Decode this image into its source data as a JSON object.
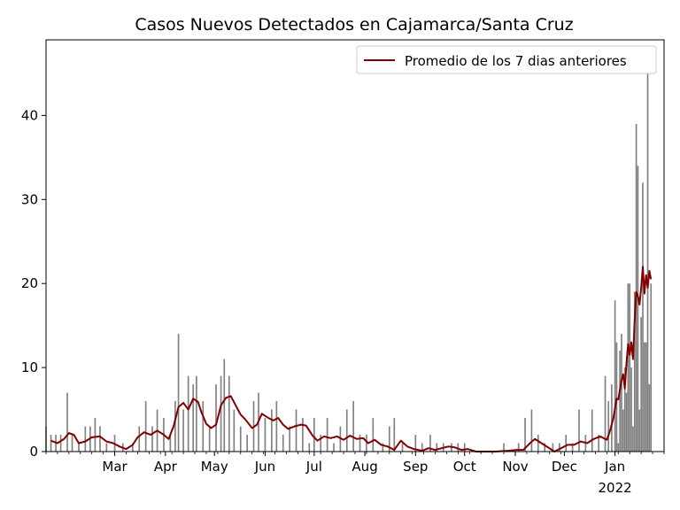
{
  "chart_data": {
    "type": "bar",
    "title": "Casos Nuevos Detectados en Cajamarca/Santa Cruz",
    "xlabel": "",
    "ylabel": "",
    "ylim": [
      0,
      49
    ],
    "xlim": [
      "2021-01-18",
      "2022-01-31"
    ],
    "y_ticks": [
      0,
      10,
      20,
      30,
      40
    ],
    "x_ticks": [
      {
        "date": "2021-03-01",
        "label": "Mar"
      },
      {
        "date": "2021-04-01",
        "label": "Apr"
      },
      {
        "date": "2021-05-01",
        "label": "May"
      },
      {
        "date": "2021-06-01",
        "label": "Jun"
      },
      {
        "date": "2021-07-01",
        "label": "Jul"
      },
      {
        "date": "2021-08-01",
        "label": "Aug"
      },
      {
        "date": "2021-09-01",
        "label": "Sep"
      },
      {
        "date": "2021-10-01",
        "label": "Oct"
      },
      {
        "date": "2021-11-01",
        "label": "Nov"
      },
      {
        "date": "2021-12-01",
        "label": "Dec"
      },
      {
        "date": "2022-01-01",
        "label": "Jan",
        "sublabel": "2022"
      }
    ],
    "legend_position": "upper right",
    "grid": false,
    "series": [
      {
        "kind": "bar",
        "color": "#808080",
        "points": [
          [
            "2021-01-18",
            3
          ],
          [
            "2021-01-21",
            2
          ],
          [
            "2021-01-24",
            2
          ],
          [
            "2021-01-27",
            2
          ],
          [
            "2021-01-31",
            7
          ],
          [
            "2021-02-03",
            2
          ],
          [
            "2021-02-07",
            1
          ],
          [
            "2021-02-11",
            3
          ],
          [
            "2021-02-14",
            3
          ],
          [
            "2021-02-17",
            4
          ],
          [
            "2021-02-20",
            3
          ],
          [
            "2021-02-24",
            1
          ],
          [
            "2021-03-01",
            2
          ],
          [
            "2021-03-06",
            1
          ],
          [
            "2021-03-12",
            1
          ],
          [
            "2021-03-16",
            3
          ],
          [
            "2021-03-20",
            6
          ],
          [
            "2021-03-24",
            3
          ],
          [
            "2021-03-27",
            5
          ],
          [
            "2021-03-31",
            4
          ],
          [
            "2021-04-04",
            2
          ],
          [
            "2021-04-07",
            6
          ],
          [
            "2021-04-09",
            14
          ],
          [
            "2021-04-12",
            5
          ],
          [
            "2021-04-15",
            9
          ],
          [
            "2021-04-18",
            8
          ],
          [
            "2021-04-20",
            9
          ],
          [
            "2021-04-24",
            6
          ],
          [
            "2021-04-28",
            3
          ],
          [
            "2021-05-02",
            8
          ],
          [
            "2021-05-05",
            9
          ],
          [
            "2021-05-07",
            11
          ],
          [
            "2021-05-10",
            9
          ],
          [
            "2021-05-13",
            5
          ],
          [
            "2021-05-17",
            3
          ],
          [
            "2021-05-21",
            2
          ],
          [
            "2021-05-25",
            6
          ],
          [
            "2021-05-28",
            7
          ],
          [
            "2021-06-01",
            4
          ],
          [
            "2021-06-05",
            5
          ],
          [
            "2021-06-08",
            6
          ],
          [
            "2021-06-12",
            2
          ],
          [
            "2021-06-16",
            3
          ],
          [
            "2021-06-20",
            5
          ],
          [
            "2021-06-24",
            4
          ],
          [
            "2021-06-28",
            1
          ],
          [
            "2021-07-01",
            4
          ],
          [
            "2021-07-05",
            2
          ],
          [
            "2021-07-09",
            4
          ],
          [
            "2021-07-13",
            1
          ],
          [
            "2021-07-17",
            3
          ],
          [
            "2021-07-21",
            5
          ],
          [
            "2021-07-25",
            6
          ],
          [
            "2021-07-29",
            2
          ],
          [
            "2021-08-02",
            2
          ],
          [
            "2021-08-06",
            4
          ],
          [
            "2021-08-12",
            1
          ],
          [
            "2021-08-16",
            3
          ],
          [
            "2021-08-19",
            4
          ],
          [
            "2021-08-24",
            1
          ],
          [
            "2021-09-01",
            2
          ],
          [
            "2021-09-05",
            1
          ],
          [
            "2021-09-10",
            2
          ],
          [
            "2021-09-14",
            1
          ],
          [
            "2021-09-18",
            1
          ],
          [
            "2021-09-23",
            1
          ],
          [
            "2021-09-27",
            1
          ],
          [
            "2021-10-01",
            1
          ],
          [
            "2021-10-06",
            0
          ],
          [
            "2021-10-12",
            0
          ],
          [
            "2021-10-20",
            0
          ],
          [
            "2021-10-25",
            1
          ],
          [
            "2021-10-30",
            0
          ],
          [
            "2021-11-03",
            1
          ],
          [
            "2021-11-07",
            4
          ],
          [
            "2021-11-11",
            5
          ],
          [
            "2021-11-15",
            2
          ],
          [
            "2021-11-19",
            1
          ],
          [
            "2021-11-24",
            1
          ],
          [
            "2021-11-28",
            1
          ],
          [
            "2021-12-02",
            2
          ],
          [
            "2021-12-06",
            1
          ],
          [
            "2021-12-10",
            5
          ],
          [
            "2021-12-14",
            2
          ],
          [
            "2021-12-18",
            5
          ],
          [
            "2021-12-22",
            2
          ],
          [
            "2021-12-26",
            9
          ],
          [
            "2021-12-28",
            6
          ],
          [
            "2021-12-30",
            8
          ],
          [
            "2022-01-01",
            18
          ],
          [
            "2022-01-02",
            13
          ],
          [
            "2022-01-03",
            1
          ],
          [
            "2022-01-04",
            12
          ],
          [
            "2022-01-05",
            14
          ],
          [
            "2022-01-06",
            5
          ],
          [
            "2022-01-07",
            10
          ],
          [
            "2022-01-08",
            7
          ],
          [
            "2022-01-09",
            20
          ],
          [
            "2022-01-10",
            20
          ],
          [
            "2022-01-11",
            10
          ],
          [
            "2022-01-12",
            3
          ],
          [
            "2022-01-13",
            19
          ],
          [
            "2022-01-14",
            39
          ],
          [
            "2022-01-15",
            34
          ],
          [
            "2022-01-16",
            5
          ],
          [
            "2022-01-17",
            16
          ],
          [
            "2022-01-18",
            32
          ],
          [
            "2022-01-19",
            13
          ],
          [
            "2022-01-20",
            13
          ],
          [
            "2022-01-21",
            47
          ],
          [
            "2022-01-22",
            8
          ],
          [
            "2022-01-23",
            20
          ]
        ]
      },
      {
        "kind": "line",
        "name": "Promedio de los 7 dias anteriores",
        "color": "#800000",
        "points": [
          [
            "2021-01-21",
            1.3
          ],
          [
            "2021-01-25",
            1.0
          ],
          [
            "2021-01-29",
            1.5
          ],
          [
            "2021-02-01",
            2.2
          ],
          [
            "2021-02-04",
            2.0
          ],
          [
            "2021-02-07",
            1.0
          ],
          [
            "2021-02-11",
            1.2
          ],
          [
            "2021-02-15",
            1.7
          ],
          [
            "2021-02-20",
            1.8
          ],
          [
            "2021-02-24",
            1.2
          ],
          [
            "2021-02-28",
            1.0
          ],
          [
            "2021-03-04",
            0.6
          ],
          [
            "2021-03-08",
            0.3
          ],
          [
            "2021-03-12",
            0.8
          ],
          [
            "2021-03-15",
            1.7
          ],
          [
            "2021-03-19",
            2.3
          ],
          [
            "2021-03-23",
            2.0
          ],
          [
            "2021-03-27",
            2.5
          ],
          [
            "2021-03-31",
            2.0
          ],
          [
            "2021-04-03",
            1.5
          ],
          [
            "2021-04-06",
            3.0
          ],
          [
            "2021-04-09",
            5.3
          ],
          [
            "2021-04-12",
            5.8
          ],
          [
            "2021-04-15",
            5.0
          ],
          [
            "2021-04-18",
            6.3
          ],
          [
            "2021-04-21",
            5.9
          ],
          [
            "2021-04-23",
            4.7
          ],
          [
            "2021-04-26",
            3.3
          ],
          [
            "2021-04-29",
            2.8
          ],
          [
            "2021-05-02",
            3.2
          ],
          [
            "2021-05-05",
            5.5
          ],
          [
            "2021-05-08",
            6.4
          ],
          [
            "2021-05-11",
            6.6
          ],
          [
            "2021-05-14",
            5.5
          ],
          [
            "2021-05-17",
            4.4
          ],
          [
            "2021-05-20",
            3.8
          ],
          [
            "2021-05-24",
            2.8
          ],
          [
            "2021-05-27",
            3.2
          ],
          [
            "2021-05-30",
            4.5
          ],
          [
            "2021-06-03",
            4.0
          ],
          [
            "2021-06-06",
            3.7
          ],
          [
            "2021-06-09",
            4.0
          ],
          [
            "2021-06-12",
            3.2
          ],
          [
            "2021-06-15",
            2.7
          ],
          [
            "2021-06-19",
            3.0
          ],
          [
            "2021-06-23",
            3.2
          ],
          [
            "2021-06-26",
            3.1
          ],
          [
            "2021-06-30",
            1.9
          ],
          [
            "2021-07-03",
            1.3
          ],
          [
            "2021-07-07",
            1.8
          ],
          [
            "2021-07-11",
            1.6
          ],
          [
            "2021-07-15",
            1.8
          ],
          [
            "2021-07-19",
            1.4
          ],
          [
            "2021-07-23",
            1.9
          ],
          [
            "2021-07-27",
            1.5
          ],
          [
            "2021-07-31",
            1.6
          ],
          [
            "2021-08-03",
            1.0
          ],
          [
            "2021-08-07",
            1.4
          ],
          [
            "2021-08-11",
            0.8
          ],
          [
            "2021-08-15",
            0.6
          ],
          [
            "2021-08-19",
            0.2
          ],
          [
            "2021-08-23",
            1.3
          ],
          [
            "2021-08-27",
            0.6
          ],
          [
            "2021-08-31",
            0.3
          ],
          [
            "2021-09-05",
            0.1
          ],
          [
            "2021-09-09",
            0.4
          ],
          [
            "2021-09-13",
            0.2
          ],
          [
            "2021-09-17",
            0.4
          ],
          [
            "2021-09-21",
            0.6
          ],
          [
            "2021-09-25",
            0.5
          ],
          [
            "2021-09-29",
            0.2
          ],
          [
            "2021-10-03",
            0.3
          ],
          [
            "2021-10-08",
            0.0
          ],
          [
            "2021-10-20",
            0.0
          ],
          [
            "2021-10-28",
            0.1
          ],
          [
            "2021-11-02",
            0.2
          ],
          [
            "2021-11-06",
            0.2
          ],
          [
            "2021-11-10",
            1.0
          ],
          [
            "2021-11-13",
            1.5
          ],
          [
            "2021-11-17",
            1.0
          ],
          [
            "2021-11-21",
            0.5
          ],
          [
            "2021-11-25",
            0.0
          ],
          [
            "2021-11-29",
            0.4
          ],
          [
            "2021-12-03",
            0.8
          ],
          [
            "2021-12-07",
            0.8
          ],
          [
            "2021-12-11",
            1.2
          ],
          [
            "2021-12-15",
            1.0
          ],
          [
            "2021-12-19",
            1.5
          ],
          [
            "2021-12-23",
            1.8
          ],
          [
            "2021-12-27",
            1.4
          ],
          [
            "2021-12-29",
            2.5
          ],
          [
            "2021-12-31",
            4.0
          ],
          [
            "2022-01-02",
            6.3
          ],
          [
            "2022-01-03",
            6.2
          ],
          [
            "2022-01-05",
            8.5
          ],
          [
            "2022-01-06",
            9.2
          ],
          [
            "2022-01-07",
            7.5
          ],
          [
            "2022-01-08",
            10.5
          ],
          [
            "2022-01-09",
            12.8
          ],
          [
            "2022-01-10",
            11.5
          ],
          [
            "2022-01-11",
            13.0
          ],
          [
            "2022-01-12",
            11.0
          ],
          [
            "2022-01-13",
            15.5
          ],
          [
            "2022-01-14",
            19.0
          ],
          [
            "2022-01-15",
            18.5
          ],
          [
            "2022-01-16",
            17.5
          ],
          [
            "2022-01-17",
            19.5
          ],
          [
            "2022-01-18",
            22.0
          ],
          [
            "2022-01-19",
            18.8
          ],
          [
            "2022-01-20",
            21.0
          ],
          [
            "2022-01-21",
            19.5
          ],
          [
            "2022-01-22",
            21.5
          ],
          [
            "2022-01-23",
            20.5
          ]
        ]
      }
    ]
  }
}
